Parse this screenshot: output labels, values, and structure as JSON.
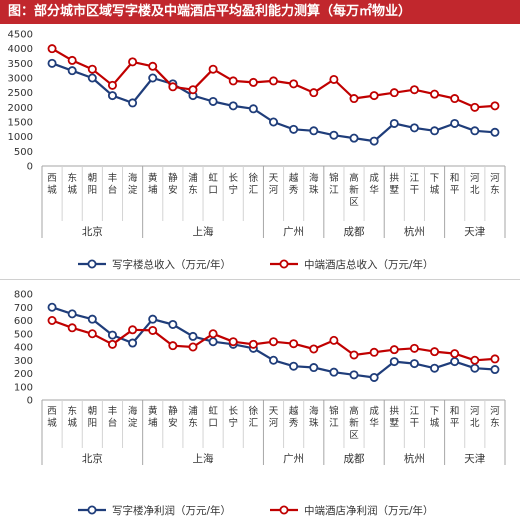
{
  "header": {
    "title": "图：部分城市区域写字楼及中端酒店平均盈利能力测算（每万㎡物业）"
  },
  "colors": {
    "office": "#1f3d7a",
    "hotel": "#c00000",
    "header_bg": "#c1272d"
  },
  "chart_data": [
    {
      "type": "line",
      "categories": [
        "西城",
        "东城",
        "朝阳",
        "丰台",
        "海淀",
        "黄埔",
        "静安",
        "浦东",
        "虹口",
        "长宁",
        "徐汇",
        "天河",
        "越秀",
        "海珠",
        "锦江",
        "高新区",
        "成华",
        "拱墅",
        "江干",
        "下城",
        "和平",
        "河北",
        "河东"
      ],
      "groups": [
        {
          "label": "北京",
          "count": 5
        },
        {
          "label": "上海",
          "count": 6
        },
        {
          "label": "广州",
          "count": 3
        },
        {
          "label": "成都",
          "count": 3
        },
        {
          "label": "杭州",
          "count": 3
        },
        {
          "label": "天津",
          "count": 3
        }
      ],
      "ylim": [
        0,
        4500
      ],
      "yticks": [
        0,
        500,
        1000,
        1500,
        2000,
        2500,
        3000,
        3500,
        4000,
        4500
      ],
      "series": [
        {
          "name": "写字楼总收入（万元/年）",
          "color": "#1f3d7a",
          "values": [
            3500,
            3250,
            3000,
            2400,
            2150,
            3000,
            2800,
            2400,
            2200,
            2050,
            1950,
            1500,
            1250,
            1200,
            1050,
            950,
            850,
            1450,
            1300,
            1200,
            1450,
            1200,
            1150
          ]
        },
        {
          "name": "中端酒店总收入（万元/年）",
          "color": "#c00000",
          "values": [
            4000,
            3600,
            3300,
            2750,
            3550,
            3400,
            2700,
            2600,
            3300,
            2900,
            2850,
            2900,
            2800,
            2500,
            2950,
            2300,
            2400,
            2500,
            2600,
            2450,
            2300,
            2000,
            2050
          ]
        }
      ]
    },
    {
      "type": "line",
      "categories": [
        "西城",
        "东城",
        "朝阳",
        "丰台",
        "海淀",
        "黄埔",
        "静安",
        "浦东",
        "虹口",
        "长宁",
        "徐汇",
        "天河",
        "越秀",
        "海珠",
        "锦江",
        "高新区",
        "成华",
        "拱墅",
        "江干",
        "下城",
        "和平",
        "河北",
        "河东"
      ],
      "groups": [
        {
          "label": "北京",
          "count": 5
        },
        {
          "label": "上海",
          "count": 6
        },
        {
          "label": "广州",
          "count": 3
        },
        {
          "label": "成都",
          "count": 3
        },
        {
          "label": "杭州",
          "count": 3
        },
        {
          "label": "天津",
          "count": 3
        }
      ],
      "ylim": [
        0,
        800
      ],
      "yticks": [
        0,
        100,
        200,
        300,
        400,
        500,
        600,
        700,
        800
      ],
      "series": [
        {
          "name": "写字楼净利润（万元/年）",
          "color": "#1f3d7a",
          "values": [
            700,
            650,
            610,
            490,
            430,
            610,
            570,
            480,
            440,
            420,
            390,
            300,
            255,
            245,
            210,
            190,
            170,
            290,
            275,
            240,
            290,
            240,
            230
          ]
        },
        {
          "name": "中端酒店净利润（万元/年）",
          "color": "#c00000",
          "values": [
            600,
            545,
            500,
            420,
            530,
            525,
            410,
            400,
            500,
            440,
            420,
            440,
            425,
            385,
            450,
            340,
            360,
            380,
            390,
            365,
            350,
            300,
            310
          ]
        }
      ]
    }
  ]
}
